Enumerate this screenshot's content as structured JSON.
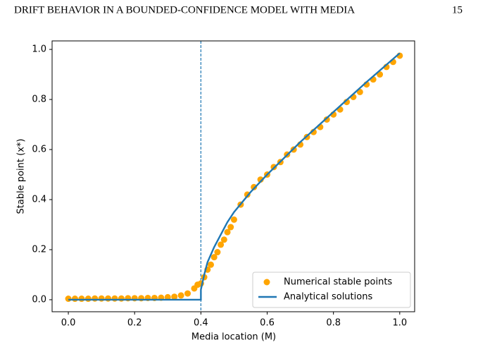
{
  "header": {
    "title": "DRIFT BEHAVIOR IN A BOUNDED-CONFIDENCE MODEL WITH MEDIA",
    "page": "15"
  },
  "chart_data": {
    "type": "scatter-line",
    "xlabel": "Media location (M)",
    "ylabel": "Stable point (x*)",
    "xlim": [
      -0.049,
      1.045
    ],
    "ylim": [
      -0.048,
      1.034
    ],
    "xticks": [
      {
        "value": 0,
        "label": "0.0"
      },
      0.2,
      0.4,
      0.6,
      0.8,
      {
        "value": 1,
        "label": "1.0"
      }
    ],
    "yticks": [
      {
        "value": 0,
        "label": "0.0"
      },
      0.2,
      0.4,
      0.6,
      0.8,
      {
        "value": 1,
        "label": "1.0"
      }
    ],
    "vline": 0.4,
    "legend": "lower right",
    "series": [
      {
        "name": "Numerical stable points",
        "kind": "scatter",
        "color": "#ffa500",
        "x": [
          0,
          0.02,
          0.04,
          0.06,
          0.08,
          0.1,
          0.12,
          0.14,
          0.16,
          0.18,
          0.2,
          0.22,
          0.24,
          0.26,
          0.28,
          0.3,
          0.32,
          0.34,
          0.36,
          0.38,
          0.39,
          0.4,
          0.41,
          0.42,
          0.43,
          0.44,
          0.45,
          0.46,
          0.47,
          0.48,
          0.49,
          0.5,
          0.52,
          0.54,
          0.56,
          0.58,
          0.6,
          0.62,
          0.64,
          0.66,
          0.68,
          0.7,
          0.72,
          0.74,
          0.76,
          0.78,
          0.8,
          0.82,
          0.84,
          0.86,
          0.88,
          0.9,
          0.92,
          0.94,
          0.96,
          0.98,
          1
        ],
        "values": [
          0.004,
          0.004,
          0.004,
          0.004,
          0.005,
          0.005,
          0.005,
          0.005,
          0.005,
          0.006,
          0.006,
          0.006,
          0.007,
          0.007,
          0.008,
          0.01,
          0.012,
          0.017,
          0.025,
          0.045,
          0.06,
          0.065,
          0.09,
          0.12,
          0.14,
          0.17,
          0.19,
          0.22,
          0.24,
          0.27,
          0.29,
          0.32,
          0.38,
          0.42,
          0.45,
          0.48,
          0.5,
          0.53,
          0.55,
          0.58,
          0.6,
          0.62,
          0.65,
          0.67,
          0.69,
          0.72,
          0.74,
          0.76,
          0.79,
          0.81,
          0.83,
          0.86,
          0.88,
          0.9,
          0.93,
          0.95,
          0.975
        ]
      },
      {
        "name": "Analytical solutions",
        "kind": "line",
        "color": "#1f77b4",
        "x": [
          0,
          0.1,
          0.2,
          0.3,
          0.4,
          0.4,
          0.405,
          0.41,
          0.42,
          0.44,
          0.46,
          0.48,
          0.5,
          0.55,
          0.6,
          0.7,
          0.8,
          0.9,
          1
        ],
        "values": [
          0,
          0,
          0,
          0,
          0,
          0.04,
          0.07,
          0.1,
          0.15,
          0.21,
          0.26,
          0.31,
          0.35,
          0.43,
          0.5,
          0.63,
          0.75,
          0.87,
          0.985
        ]
      }
    ]
  }
}
